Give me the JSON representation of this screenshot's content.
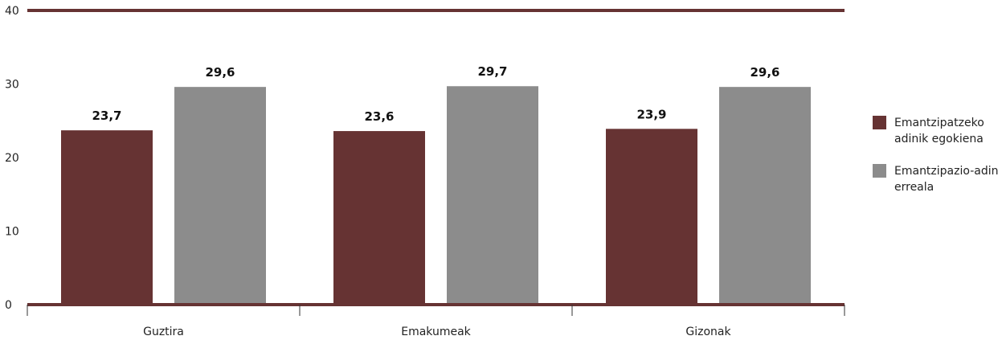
{
  "chart_data": {
    "type": "bar",
    "categories": [
      "Guztira",
      "Emakumeak",
      "Gizonak"
    ],
    "series": [
      {
        "name": "Emantzipatzeko adinik egokiena",
        "values": [
          23.7,
          23.6,
          23.9
        ],
        "labels": [
          "23,7",
          "23,6",
          "23,9"
        ],
        "color": "#663333"
      },
      {
        "name": "Emantzipazio-adin erreala",
        "values": [
          29.6,
          29.7,
          29.6
        ],
        "labels": [
          "29,6",
          "29,7",
          "29,6"
        ],
        "color": "#8c8c8c"
      }
    ],
    "yticks": [
      0,
      10,
      20,
      30,
      40
    ],
    "ylim": [
      0,
      40
    ],
    "axis_color": "#663333",
    "legend_position": "right",
    "title": "",
    "xlabel": "",
    "ylabel": ""
  }
}
